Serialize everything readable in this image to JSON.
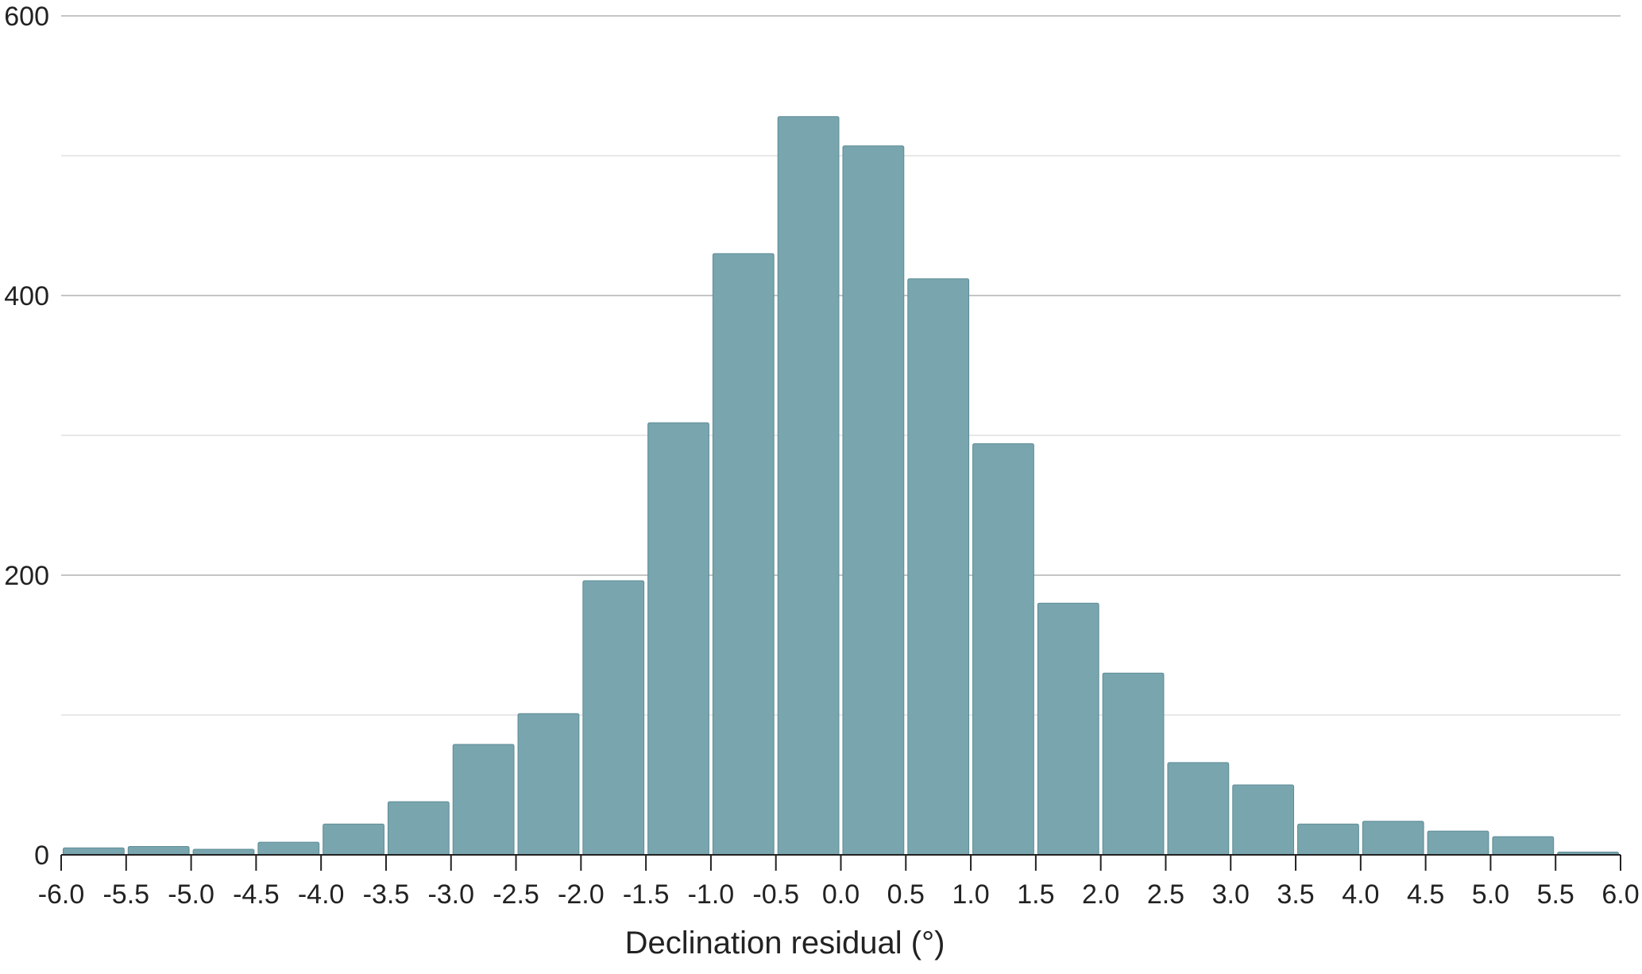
{
  "chart_data": {
    "type": "bar",
    "bin_edges": [
      -6.0,
      -5.5,
      -5.0,
      -4.5,
      -4.0,
      -3.5,
      -3.0,
      -2.5,
      -2.0,
      -1.5,
      -1.0,
      -0.5,
      0.0,
      0.5,
      1.0,
      1.5,
      2.0,
      2.5,
      3.0,
      3.5,
      4.0,
      4.5,
      5.0,
      5.5,
      6.0
    ],
    "x_tick_labels": [
      "-6.0",
      "-5.5",
      "-5.0",
      "-4.5",
      "-4.0",
      "-3.5",
      "-3.0",
      "-2.5",
      "-2.0",
      "-1.5",
      "-1.0",
      "-0.5",
      "0.0",
      "0.5",
      "1.0",
      "1.5",
      "2.0",
      "2.5",
      "3.0",
      "3.5",
      "4.0",
      "4.5",
      "5.0",
      "5.5",
      "6.0"
    ],
    "values": [
      5,
      6,
      4,
      9,
      22,
      38,
      79,
      101,
      196,
      309,
      430,
      528,
      507,
      412,
      294,
      180,
      130,
      66,
      50,
      22,
      24,
      17,
      13,
      2
    ],
    "y_ticks": [
      0,
      200,
      400,
      600
    ],
    "y_tick_labels": [
      "0",
      "200",
      "400",
      "600"
    ],
    "y_minor_gridlines": [
      100,
      300,
      500
    ],
    "ylim": [
      0,
      600
    ],
    "xlim": [
      -6.0,
      6.0
    ],
    "xlabel": "Declination residual (°)",
    "ylabel": "",
    "title": "",
    "grid": "horizontal",
    "colors": {
      "bar": "#78a5ae",
      "bar_edge": "#ffffff",
      "major_grid": "#bdbdbd",
      "minor_grid": "#e0e0e0",
      "axis": "#222222"
    }
  }
}
